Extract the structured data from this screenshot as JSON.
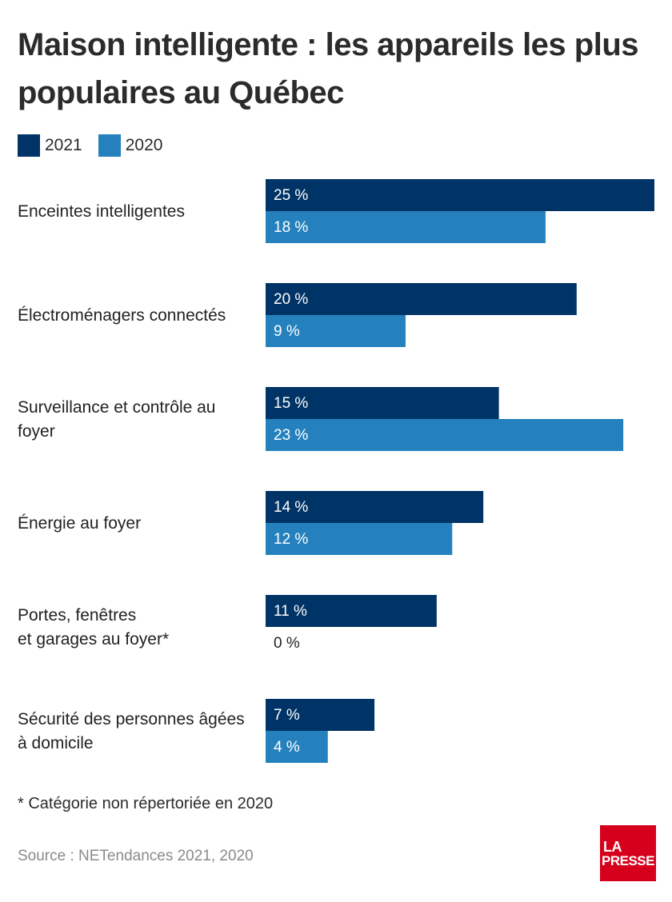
{
  "title": "Maison intelligente : les appareils les plus populaires au Québec",
  "legend": [
    {
      "label": "2021",
      "color": "#003366"
    },
    {
      "label": "2020",
      "color": "#2581bd"
    }
  ],
  "chart_data": {
    "type": "bar",
    "orientation": "horizontal",
    "title": "Maison intelligente : les appareils les plus populaires au Québec",
    "categories": [
      [
        "Enceintes intelligentes"
      ],
      [
        "Électroménagers connectés"
      ],
      [
        "Surveillance et contrôle au",
        "foyer"
      ],
      [
        "Énergie au foyer"
      ],
      [
        "Portes, fenêtres",
        "et garages au foyer*"
      ],
      [
        "Sécurité des personnes âgées",
        "à domicile"
      ]
    ],
    "series": [
      {
        "name": "2021",
        "color": "#003366",
        "values": [
          25,
          20,
          15,
          14,
          11,
          7
        ],
        "labels": [
          "25 %",
          "20 %",
          "15 %",
          "14 %",
          "11 %",
          "7 %"
        ]
      },
      {
        "name": "2020",
        "color": "#2581bd",
        "values": [
          18,
          9,
          23,
          12,
          0,
          4
        ],
        "labels": [
          "18 %",
          "9 %",
          "23 %",
          "12 %",
          "0 %",
          "4 %"
        ]
      }
    ],
    "xlim": [
      0,
      25
    ],
    "grid": false,
    "legend_position": "top-left"
  },
  "footnote": "* Catégorie non répertoriée en 2020",
  "source": "Source : NETendances 2021, 2020",
  "logo": {
    "line1": "LA",
    "line2": "PRESSE",
    "color": "#d6001c"
  }
}
